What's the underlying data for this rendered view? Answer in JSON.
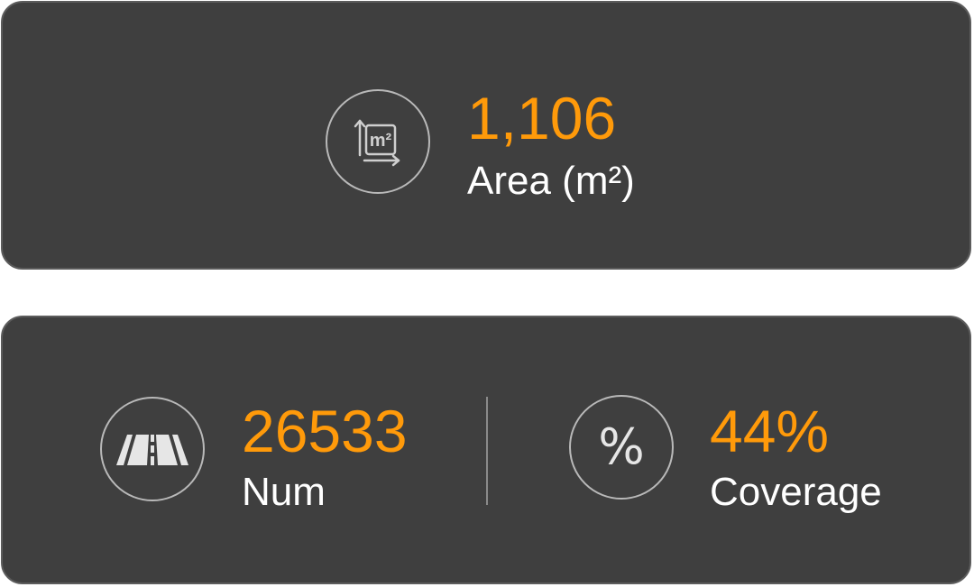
{
  "area": {
    "value": "1,106",
    "label": "Area (m²)",
    "icon": "area-square-meter-icon",
    "icon_text": "m²"
  },
  "num": {
    "value": "26533",
    "label": "Num",
    "icon": "road-icon"
  },
  "coverage": {
    "value": "44%",
    "label": "Coverage",
    "icon": "percent-icon",
    "icon_text": "%"
  },
  "colors": {
    "card_background": "#3f3f3f",
    "value_accent": "#ff9a0a",
    "label_text": "#ffffff",
    "icon_stroke": "#b9b9b9"
  }
}
